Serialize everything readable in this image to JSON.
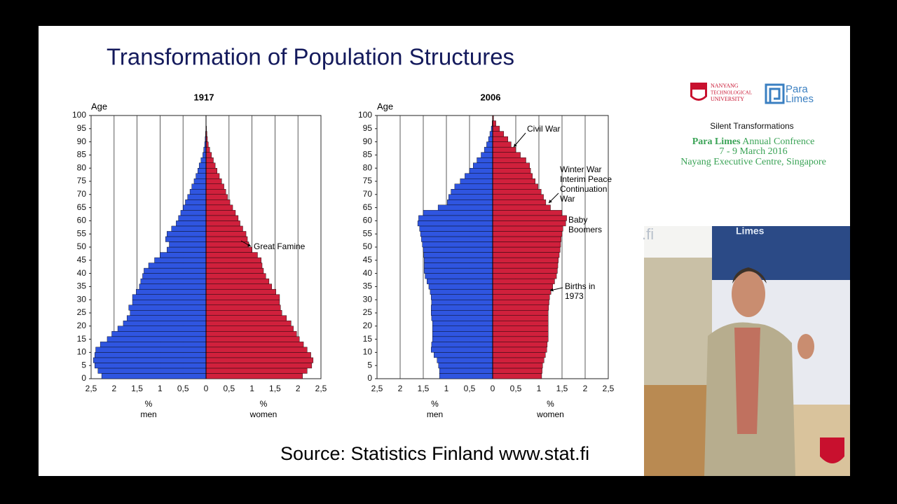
{
  "slide": {
    "title": "Transformation of Population Structures",
    "source": "Source: Statistics Finland www.stat.fi",
    "sidebar": {
      "university": [
        "NANYANG",
        "TECHNOLOGICAL",
        "UNIVERSITY"
      ],
      "logo": [
        "Para",
        "Limes"
      ],
      "event": "Silent Transformations",
      "brand": "Para Limes",
      "conference": "Annual Confrence",
      "dates": "7 - 9 March 2016",
      "venue": "Nayang Executive Centre, Singapore"
    },
    "video": {
      "screen_text": ".fi",
      "poster_text": "Limes"
    }
  },
  "chart_data": [
    {
      "type": "pyramid",
      "title": "1917",
      "y_label": "Age",
      "x_unit": "%",
      "ages": [
        0,
        2,
        4,
        6,
        8,
        10,
        12,
        14,
        16,
        18,
        20,
        22,
        24,
        26,
        28,
        30,
        32,
        34,
        36,
        38,
        40,
        42,
        44,
        46,
        48,
        50,
        52,
        54,
        56,
        58,
        60,
        62,
        64,
        66,
        68,
        70,
        72,
        74,
        76,
        78,
        80,
        82,
        84,
        86,
        88,
        90,
        92,
        94,
        96,
        98
      ],
      "ylim": [
        0,
        100
      ],
      "yticks": [
        0,
        5,
        10,
        15,
        20,
        25,
        30,
        35,
        40,
        45,
        50,
        55,
        60,
        65,
        70,
        75,
        80,
        85,
        90,
        95,
        100
      ],
      "xlim": [
        -2.5,
        2.5
      ],
      "xticks": [
        {
          "value": -2.5,
          "label": "2,5"
        },
        {
          "value": -2,
          "label": "2"
        },
        {
          "value": -1.5,
          "label": "1,5"
        },
        {
          "value": -1,
          "label": "1"
        },
        {
          "value": -0.5,
          "label": "0,5"
        },
        0,
        {
          "value": 0.5,
          "label": "0,5"
        },
        {
          "value": 1,
          "label": "1"
        },
        {
          "value": 1.5,
          "label": "1,5"
        },
        {
          "value": 2,
          "label": "2"
        },
        {
          "value": 2.5,
          "label": "2,5"
        }
      ],
      "grid": true,
      "series": [
        {
          "name": "men",
          "side": "left",
          "color": "#2f55e0",
          "values": [
            2.27,
            2.35,
            2.42,
            2.45,
            2.42,
            2.4,
            2.3,
            2.15,
            2.05,
            1.92,
            1.8,
            1.72,
            1.65,
            1.68,
            1.6,
            1.6,
            1.52,
            1.45,
            1.42,
            1.38,
            1.35,
            1.25,
            1.12,
            1.0,
            0.85,
            0.8,
            0.88,
            0.85,
            0.75,
            0.65,
            0.6,
            0.55,
            0.5,
            0.45,
            0.4,
            0.35,
            0.31,
            0.26,
            0.22,
            0.18,
            0.15,
            0.11,
            0.07,
            0.05,
            0.03,
            0.02,
            0.01,
            0,
            0,
            0
          ]
        },
        {
          "name": "women",
          "side": "right",
          "color": "#d0203c",
          "values": [
            2.1,
            2.2,
            2.3,
            2.33,
            2.28,
            2.2,
            2.12,
            2.03,
            1.97,
            1.9,
            1.85,
            1.75,
            1.65,
            1.62,
            1.6,
            1.6,
            1.52,
            1.43,
            1.37,
            1.3,
            1.25,
            1.22,
            1.2,
            1.12,
            1.0,
            0.93,
            0.9,
            0.87,
            0.8,
            0.74,
            0.7,
            0.64,
            0.58,
            0.52,
            0.47,
            0.43,
            0.39,
            0.34,
            0.29,
            0.24,
            0.2,
            0.16,
            0.12,
            0.08,
            0.05,
            0.03,
            0.02,
            0.01,
            0,
            0
          ]
        }
      ],
      "annotations": [
        {
          "lines": [
            "Great Famine"
          ]
        }
      ]
    },
    {
      "type": "pyramid",
      "title": "2006",
      "y_label": "Age",
      "x_unit": "%",
      "ages": [
        0,
        2,
        4,
        6,
        8,
        10,
        12,
        14,
        16,
        18,
        20,
        22,
        24,
        26,
        28,
        30,
        32,
        34,
        36,
        38,
        40,
        42,
        44,
        46,
        48,
        50,
        52,
        54,
        56,
        58,
        60,
        62,
        64,
        66,
        68,
        70,
        72,
        74,
        76,
        78,
        80,
        82,
        84,
        86,
        88,
        90,
        92,
        94,
        96,
        98
      ],
      "ylim": [
        0,
        100
      ],
      "yticks": [
        0,
        5,
        10,
        15,
        20,
        25,
        30,
        35,
        40,
        45,
        50,
        55,
        60,
        65,
        70,
        75,
        80,
        85,
        90,
        95,
        100
      ],
      "xlim": [
        -2.5,
        2.5
      ],
      "xticks": [
        {
          "value": -2.5,
          "label": "2,5"
        },
        {
          "value": -2,
          "label": "2"
        },
        {
          "value": -1.5,
          "label": "1,5"
        },
        {
          "value": -1,
          "label": "1"
        },
        {
          "value": -0.5,
          "label": "0,5"
        },
        0,
        {
          "value": 0.5,
          "label": "0,5"
        },
        {
          "value": 1,
          "label": "1"
        },
        {
          "value": 1.5,
          "label": "1,5"
        },
        {
          "value": 2,
          "label": "2"
        },
        {
          "value": 2.5,
          "label": "2,5"
        }
      ],
      "grid": true,
      "series": [
        {
          "name": "men",
          "side": "left",
          "color": "#2f55e0",
          "values": [
            1.15,
            1.15,
            1.17,
            1.2,
            1.27,
            1.33,
            1.32,
            1.3,
            1.3,
            1.3,
            1.3,
            1.32,
            1.33,
            1.33,
            1.32,
            1.33,
            1.35,
            1.38,
            1.42,
            1.46,
            1.48,
            1.48,
            1.48,
            1.49,
            1.5,
            1.52,
            1.54,
            1.56,
            1.58,
            1.62,
            1.6,
            1.5,
            1.18,
            0.98,
            0.95,
            0.9,
            0.82,
            0.7,
            0.6,
            0.5,
            0.42,
            0.34,
            0.25,
            0.18,
            0.13,
            0.09,
            0.06,
            0.03,
            0.01,
            0
          ]
        },
        {
          "name": "women",
          "side": "right",
          "color": "#d0203c",
          "values": [
            1.06,
            1.07,
            1.08,
            1.11,
            1.14,
            1.17,
            1.18,
            1.2,
            1.2,
            1.2,
            1.2,
            1.2,
            1.2,
            1.21,
            1.22,
            1.23,
            1.26,
            1.3,
            1.34,
            1.38,
            1.4,
            1.41,
            1.42,
            1.44,
            1.46,
            1.47,
            1.48,
            1.5,
            1.52,
            1.58,
            1.6,
            1.5,
            1.25,
            1.15,
            1.1,
            1.05,
            0.98,
            0.92,
            0.86,
            0.82,
            0.8,
            0.72,
            0.6,
            0.5,
            0.4,
            0.33,
            0.24,
            0.15,
            0.07,
            0.02
          ]
        }
      ],
      "annotations": [
        {
          "lines": [
            "Civil War"
          ]
        },
        {
          "lines": [
            "Winter War",
            "Interim Peace",
            "Continuation",
            "War"
          ]
        },
        {
          "lines": [
            "Baby",
            "Boomers"
          ]
        },
        {
          "lines": [
            "Births in",
            "1973"
          ]
        }
      ]
    }
  ]
}
